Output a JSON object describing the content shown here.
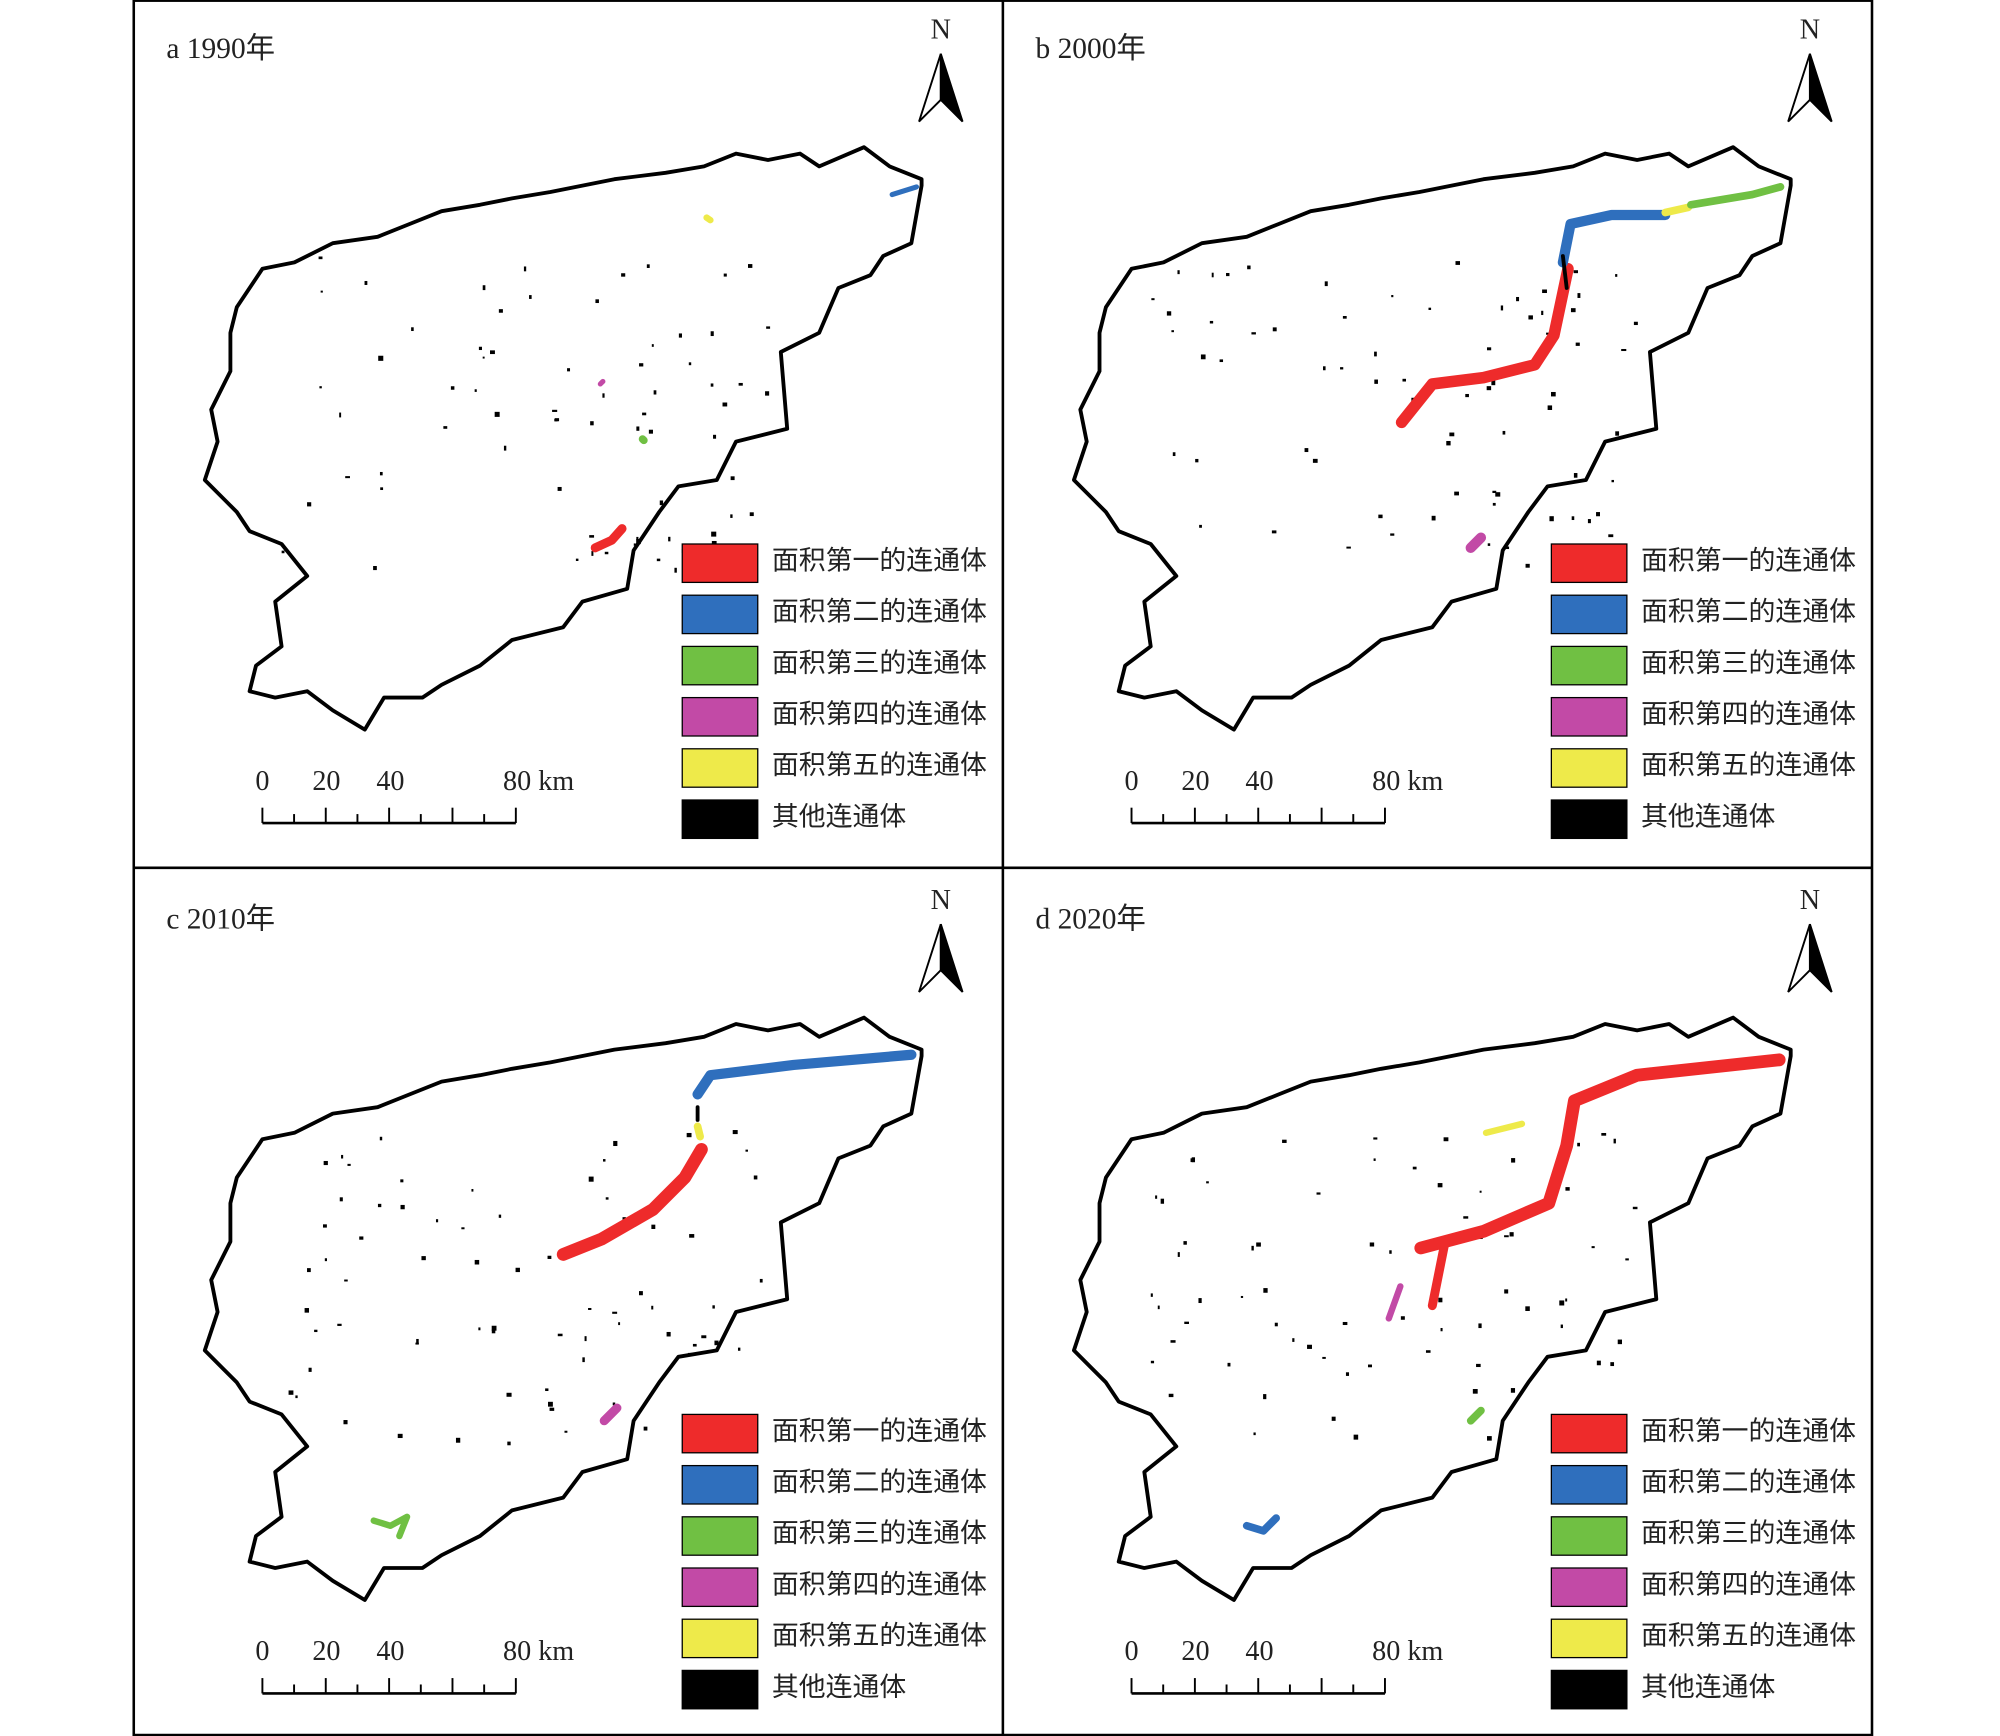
{
  "panels": [
    {
      "label": "a 1990年"
    },
    {
      "label": "b 2000年"
    },
    {
      "label": "c 2010年"
    },
    {
      "label": "d 2020年"
    }
  ],
  "north": "N",
  "legend": [
    {
      "name": "面积第一的连通体",
      "color": "#ee2b2b"
    },
    {
      "name": "面积第二的连通体",
      "color": "#2f6fbd"
    },
    {
      "name": "面积第三的连通体",
      "color": "#70c043"
    },
    {
      "name": "面积第四的连通体",
      "color": "#c24aa6"
    },
    {
      "name": "面积第五的连通体",
      "color": "#eeea4a"
    },
    {
      "name": "其他连通体",
      "color": "#000000"
    }
  ],
  "scale_bar": {
    "labels": [
      "0",
      "20",
      "40",
      "80 km"
    ]
  }
}
